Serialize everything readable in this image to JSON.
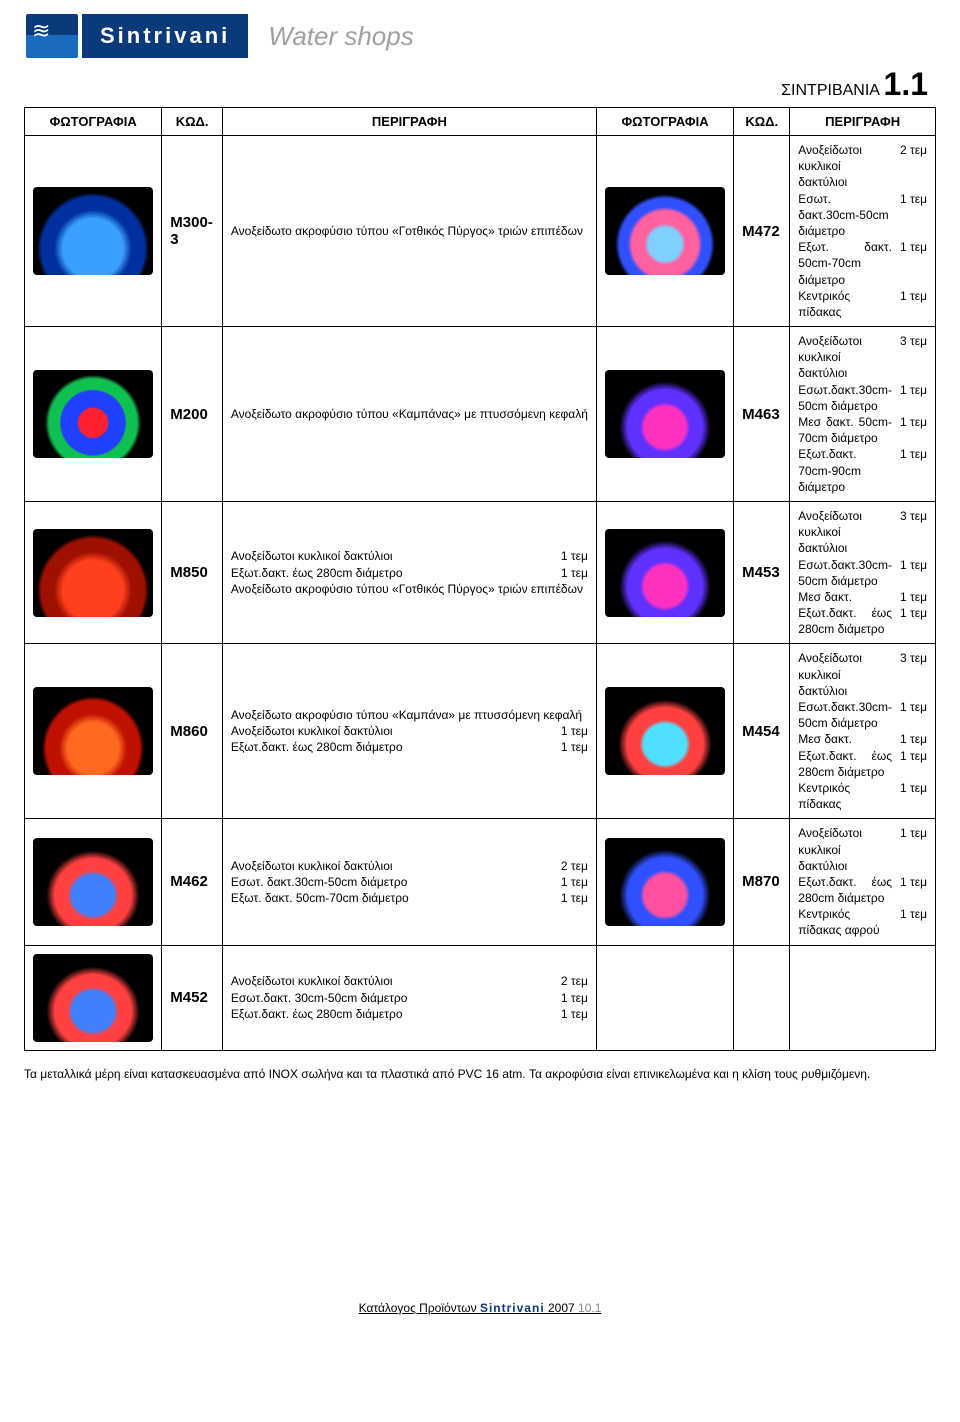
{
  "header": {
    "brand": "Sintrivani",
    "subtitle": "Water shops",
    "page_title_prefix": "ΣΙΝΤΡΙΒΑΝΙΑ ",
    "page_title_num": "1.1"
  },
  "columns": {
    "photo": "ΦΩΤΟΓΡΑΦΙΑ",
    "code": "ΚΩΔ.",
    "desc": "ΠΕΡΙΓΡΑΦΗ"
  },
  "rows": [
    {
      "left": {
        "code": "Μ300-3",
        "thumb_class": "t-blue",
        "lines": [
          [
            "Ανοξείδωτο ακροφύσιο τύπου «Γοτθικός Πύργος» τριών επιπέδων",
            ""
          ]
        ]
      },
      "right": {
        "code": "Μ472",
        "thumb_class": "t-multi",
        "lines": [
          [
            "Ανοξείδωτοι κυκλικοί δακτύλιοι",
            "2 τεμ"
          ],
          [
            "Εσωτ. δακτ.30cm-50cm διάμετρο",
            "1 τεμ"
          ],
          [
            "Εξωτ. δακτ. 50cm-70cm διάμετρο",
            "1 τεμ"
          ],
          [
            "Κεντρικός πίδακας",
            "1 τεμ"
          ]
        ]
      }
    },
    {
      "left": {
        "code": "Μ200",
        "thumb_class": "t-rgb",
        "lines": [
          [
            "Ανοξείδωτο ακροφύσιο τύπου «Καμπάνας» με πτυσσόμενη κεφαλή",
            ""
          ]
        ]
      },
      "right": {
        "code": "Μ463",
        "thumb_class": "t-mag",
        "lines": [
          [
            "Ανοξείδωτοι κυκλικοί δακτύλιοι",
            "3 τεμ"
          ],
          [
            "Εσωτ.δακτ.30cm-50cm διάμετρο",
            "1 τεμ"
          ],
          [
            "Μεσ δακτ. 50cm-70cm διάμετρο",
            "1 τεμ"
          ],
          [
            "Εξωτ.δακτ. 70cm-90cm διάμετρο",
            "1 τεμ"
          ]
        ]
      }
    },
    {
      "left": {
        "code": "Μ850",
        "thumb_class": "t-red",
        "lines": [
          [
            "Ανοξείδωτοι κυκλικοί δακτύλιοι",
            "1 τεμ"
          ],
          [
            "Εξωτ.δακτ. έως 280cm διάμετρο",
            "1 τεμ"
          ],
          [
            "Ανοξείδωτο ακροφύσιο τύπου «Γοτθικός Πύργος» τριών επιπέδων",
            ""
          ]
        ]
      },
      "right": {
        "code": "Μ453",
        "thumb_class": "t-mag",
        "lines": [
          [
            "Ανοξείδωτοι κυκλικοί δακτύλιοι",
            "3 τεμ"
          ],
          [
            "Εσωτ.δακτ.30cm-50cm διάμετρο",
            "1 τεμ"
          ],
          [
            "Μεσ δακτ.",
            "1 τεμ"
          ],
          [
            "Εξωτ.δακτ. έως 280cm διάμετρο",
            "1 τεμ"
          ]
        ]
      }
    },
    {
      "left": {
        "code": "Μ860",
        "thumb_class": "t-redorg",
        "lines": [
          [
            "Ανοξείδωτο ακροφύσιο τύπου «Καμπάνα» με πτυσσόμενη κεφαλή",
            ""
          ],
          [
            "Ανοξείδωτοι κυκλικοί δακτύλιοι",
            "1 τεμ"
          ],
          [
            "Εξωτ.δακτ. έως 280cm διάμετρο",
            "1 τεμ"
          ]
        ]
      },
      "right": {
        "code": "Μ454",
        "thumb_class": "t-cyan",
        "lines": [
          [
            "Ανοξείδωτοι κυκλικοί δακτύλιοι",
            "3 τεμ"
          ],
          [
            "Εσωτ.δακτ.30cm-50cm διάμετρο",
            "1 τεμ"
          ],
          [
            "Μεσ δακτ.",
            "1 τεμ"
          ],
          [
            "Εξωτ.δακτ. έως 280cm διάμετρο",
            "1 τεμ"
          ],
          [
            "Κεντρικός πίδακας",
            "1 τεμ"
          ]
        ]
      }
    },
    {
      "left": {
        "code": "Μ462",
        "thumb_class": "t-blured",
        "lines": [
          [
            "Ανοξείδωτοι κυκλικοί δακτύλιοι",
            "2 τεμ"
          ],
          [
            "Εσωτ. δακτ.30cm-50cm διάμετρο",
            "1 τεμ"
          ],
          [
            "Εξωτ. δακτ. 50cm-70cm διάμετρο",
            "1 τεμ"
          ]
        ]
      },
      "right": {
        "code": "Μ870",
        "thumb_class": "t-pink",
        "lines": [
          [
            "Ανοξείδωτοι κυκλικοί δακτύλιοι",
            "1 τεμ"
          ],
          [
            "Εξωτ.δακτ. έως 280cm διάμετρο",
            "1 τεμ"
          ],
          [
            "Κεντρικός πίδακας αφρού",
            "1 τεμ"
          ]
        ]
      }
    },
    {
      "left": {
        "code": "Μ452",
        "thumb_class": "t-blured",
        "lines": [
          [
            "Ανοξείδωτοι κυκλικοί δακτύλιοι",
            "2 τεμ"
          ],
          [
            "Εσωτ.δακτ. 30cm-50cm διάμετρο",
            "1 τεμ"
          ],
          [
            "Εξωτ.δακτ. έως 280cm διάμετρο",
            "1 τεμ"
          ]
        ]
      },
      "right": null
    }
  ],
  "footnote": "Τα μεταλλικά μέρη είναι κατασκευασμένα από INOX σωλήνα και τα πλαστικά από PVC 16 atm. Τα ακροφύσια είναι επινικελωμένα και η κλίση τους ρυθμιζόμενη.",
  "footer": {
    "prefix": "Κατάλογος Προϊόντων ",
    "brand": "Sintrivani",
    "year": " 2007 ",
    "pg": "10.1"
  }
}
